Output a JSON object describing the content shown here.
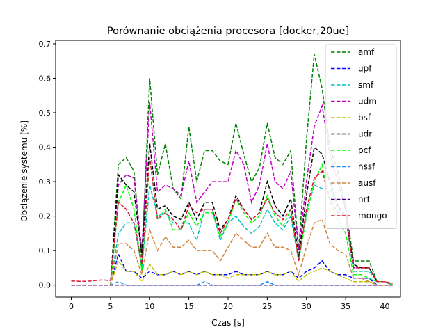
{
  "chart_data": {
    "type": "line",
    "title": "Porównanie obciążenia procesora [docker,20ue]",
    "xlabel": "Czas [s]",
    "ylabel": "Obciążenie systemu [%]",
    "xlim": [
      -2,
      42
    ],
    "ylim": [
      -0.035,
      0.71
    ],
    "xticks": [
      0,
      5,
      10,
      15,
      20,
      25,
      30,
      35,
      40
    ],
    "yticks": [
      0.0,
      0.1,
      0.2,
      0.3,
      0.4,
      0.5,
      0.6,
      0.7
    ],
    "xtick_labels": [
      "0",
      "5",
      "10",
      "15",
      "20",
      "25",
      "30",
      "35",
      "40"
    ],
    "ytick_labels": [
      "0.0",
      "0.1",
      "0.2",
      "0.3",
      "0.4",
      "0.5",
      "0.6",
      "0.7"
    ],
    "grid": false,
    "legend": "top-right",
    "line_style": "dashed",
    "x": [
      0,
      1,
      2,
      3,
      4,
      5,
      6,
      7,
      8,
      9,
      10,
      11,
      12,
      13,
      14,
      15,
      16,
      17,
      18,
      19,
      20,
      21,
      22,
      23,
      24,
      25,
      26,
      27,
      28,
      29,
      30,
      31,
      32,
      33,
      34,
      35,
      36,
      37,
      38,
      39,
      40,
      41
    ],
    "series": [
      {
        "name": "amf",
        "color": "#008000",
        "values": [
          0,
          0,
          0,
          0,
          0,
          0,
          0.35,
          0.37,
          0.33,
          0.07,
          0.6,
          0.32,
          0.41,
          0.28,
          0.25,
          0.46,
          0.3,
          0.39,
          0.39,
          0.36,
          0.35,
          0.47,
          0.38,
          0.3,
          0.34,
          0.47,
          0.37,
          0.35,
          0.39,
          0.1,
          0.42,
          0.67,
          0.57,
          0.4,
          0.33,
          0.23,
          0.07,
          0.07,
          0.07,
          0.01,
          0.01,
          0.0
        ]
      },
      {
        "name": "upf",
        "color": "#0000ff",
        "values": [
          0,
          0,
          0,
          0,
          0,
          0,
          0.09,
          0.04,
          0.04,
          0.02,
          0.04,
          0.03,
          0.03,
          0.04,
          0.03,
          0.04,
          0.03,
          0.04,
          0.03,
          0.03,
          0.03,
          0.04,
          0.03,
          0.03,
          0.03,
          0.04,
          0.03,
          0.03,
          0.04,
          0.02,
          0.04,
          0.05,
          0.07,
          0.04,
          0.03,
          0.03,
          0.02,
          0.02,
          0.02,
          0.0,
          0.0,
          0.0
        ]
      },
      {
        "name": "smf",
        "color": "#00bfbf",
        "values": [
          0,
          0,
          0,
          0,
          0,
          0,
          0.15,
          0.18,
          0.18,
          0.05,
          0.29,
          0.2,
          0.21,
          0.18,
          0.18,
          0.18,
          0.13,
          0.22,
          0.22,
          0.13,
          0.18,
          0.2,
          0.17,
          0.15,
          0.17,
          0.22,
          0.18,
          0.16,
          0.2,
          0.07,
          0.21,
          0.29,
          0.28,
          0.28,
          0.22,
          0.2,
          0.04,
          0.04,
          0.04,
          0.01,
          0.01,
          0.0
        ]
      },
      {
        "name": "udm",
        "color": "#bf00bf",
        "values": [
          0,
          0,
          0,
          0,
          0,
          0,
          0.29,
          0.32,
          0.31,
          0.1,
          0.53,
          0.27,
          0.29,
          0.28,
          0.26,
          0.36,
          0.24,
          0.27,
          0.3,
          0.3,
          0.3,
          0.39,
          0.35,
          0.24,
          0.29,
          0.41,
          0.3,
          0.28,
          0.33,
          0.1,
          0.3,
          0.46,
          0.52,
          0.38,
          0.3,
          0.22,
          0.05,
          0.05,
          0.05,
          0.01,
          0.01,
          0.0
        ]
      },
      {
        "name": "bsf",
        "color": "#bfbf00",
        "values": [
          0,
          0,
          0,
          0,
          0,
          0,
          0.07,
          0.04,
          0.04,
          0.01,
          0.06,
          0.03,
          0.03,
          0.04,
          0.03,
          0.04,
          0.03,
          0.04,
          0.03,
          0.03,
          0.02,
          0.03,
          0.03,
          0.03,
          0.03,
          0.04,
          0.03,
          0.03,
          0.04,
          0.01,
          0.03,
          0.04,
          0.05,
          0.04,
          0.03,
          0.02,
          0.01,
          0.01,
          0.01,
          0.0,
          0.0,
          0.0
        ]
      },
      {
        "name": "udr",
        "color": "#000000",
        "values": [
          0,
          0,
          0,
          0,
          0,
          0,
          0.32,
          0.29,
          0.27,
          0.09,
          0.41,
          0.22,
          0.23,
          0.2,
          0.19,
          0.24,
          0.19,
          0.24,
          0.24,
          0.16,
          0.19,
          0.26,
          0.22,
          0.19,
          0.21,
          0.3,
          0.23,
          0.2,
          0.25,
          0.08,
          0.26,
          0.4,
          0.38,
          0.3,
          0.23,
          0.2,
          0.06,
          0.05,
          0.05,
          0.01,
          0.01,
          0.0
        ]
      },
      {
        "name": "pcf",
        "color": "#00ff00",
        "values": [
          0,
          0,
          0,
          0,
          0,
          0,
          0.24,
          0.29,
          0.22,
          0.04,
          0.37,
          0.19,
          0.22,
          0.16,
          0.16,
          0.21,
          0.17,
          0.21,
          0.21,
          0.14,
          0.18,
          0.25,
          0.21,
          0.18,
          0.2,
          0.26,
          0.2,
          0.17,
          0.22,
          0.07,
          0.2,
          0.3,
          0.35,
          0.24,
          0.19,
          0.15,
          0.03,
          0.03,
          0.02,
          0.01,
          0.01,
          0.0
        ]
      },
      {
        "name": "nssf",
        "color": "#1e90ff",
        "values": [
          0,
          0,
          0,
          0,
          0,
          0,
          0.01,
          0.0,
          0.0,
          0.0,
          0.0,
          0.0,
          0.0,
          0.0,
          0.0,
          0.0,
          0.0,
          0.01,
          0.0,
          0.0,
          0.0,
          0.0,
          0.0,
          0.0,
          0.0,
          0.01,
          0.0,
          0.0,
          0.0,
          0.0,
          0.0,
          0.0,
          0.0,
          0.0,
          0.0,
          0.0,
          0.0,
          0.0,
          0.0,
          0.0,
          0.0,
          0.0
        ]
      },
      {
        "name": "ausf",
        "color": "#cd853f",
        "values": [
          0,
          0,
          0,
          0,
          0,
          0,
          0.12,
          0.12,
          0.1,
          0.03,
          0.16,
          0.1,
          0.14,
          0.11,
          0.11,
          0.13,
          0.1,
          0.1,
          0.1,
          0.07,
          0.11,
          0.15,
          0.13,
          0.11,
          0.11,
          0.15,
          0.11,
          0.11,
          0.1,
          0.03,
          0.11,
          0.18,
          0.19,
          0.12,
          0.1,
          0.09,
          0.02,
          0.02,
          0.01,
          0.0,
          0.0,
          0.0
        ]
      },
      {
        "name": "nrf",
        "color": "#4b0082",
        "values": [
          0,
          0,
          0,
          0,
          0,
          0,
          0.0,
          0.0,
          0.0,
          0.0,
          0.0,
          0.0,
          0.0,
          0.0,
          0.0,
          0.0,
          0.0,
          0.0,
          0.0,
          0.0,
          0.0,
          0.0,
          0.0,
          0.0,
          0.0,
          0.0,
          0.0,
          0.0,
          0.0,
          0.0,
          0.0,
          0.0,
          0.0,
          0.0,
          0.0,
          0.0,
          0.0,
          0.0,
          0.0,
          0.0,
          0.0,
          0.0
        ]
      },
      {
        "name": "mongo",
        "color": "#dc143c",
        "values": [
          0.012,
          0.011,
          0.011,
          0.013,
          0.015,
          0.013,
          0.24,
          0.22,
          0.18,
          0.06,
          0.37,
          0.19,
          0.21,
          0.19,
          0.16,
          0.23,
          0.21,
          0.22,
          0.22,
          0.15,
          0.19,
          0.25,
          0.22,
          0.19,
          0.21,
          0.25,
          0.21,
          0.19,
          0.22,
          0.07,
          0.22,
          0.31,
          0.33,
          0.25,
          0.21,
          0.2,
          0.05,
          0.05,
          0.05,
          0.01,
          0.01,
          0.005
        ]
      }
    ]
  }
}
